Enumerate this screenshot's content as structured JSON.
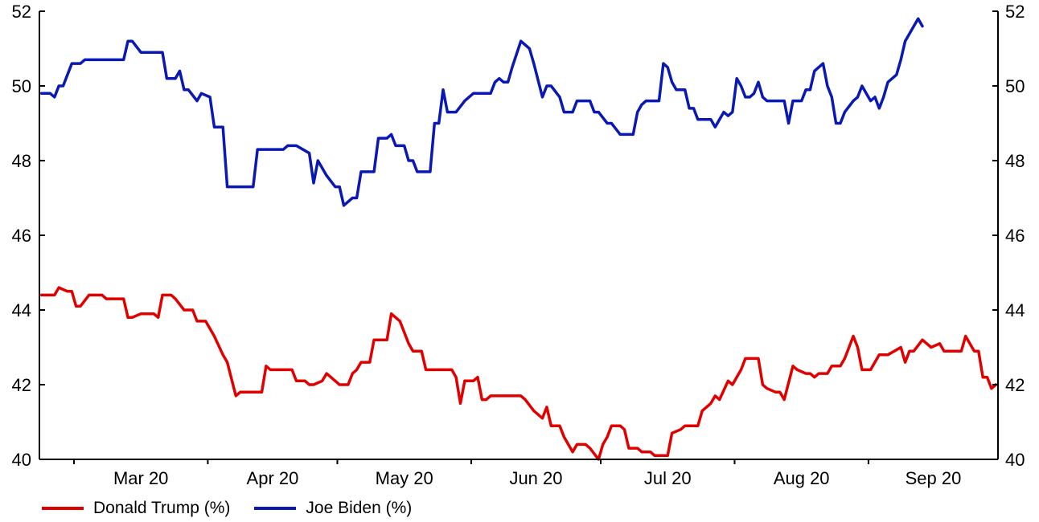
{
  "chart_data": {
    "type": "line",
    "title": "",
    "xlabel": "",
    "ylabel": "",
    "ylim": [
      40,
      52
    ],
    "y_ticks": [
      "40",
      "42",
      "44",
      "46",
      "48",
      "50",
      "52"
    ],
    "y_axis_sides": "left-and-right",
    "x_range": [
      "2020-02-22",
      "2020-09-30"
    ],
    "x_month_labels": [
      {
        "label": "Mar 20",
        "month": "2020-03"
      },
      {
        "label": "Apr 20",
        "month": "2020-04"
      },
      {
        "label": "May 20",
        "month": "2020-05"
      },
      {
        "label": "Jun 20",
        "month": "2020-06"
      },
      {
        "label": "Jul 20",
        "month": "2020-07"
      },
      {
        "label": "Aug 20",
        "month": "2020-08"
      },
      {
        "label": "Sep 20",
        "month": "2020-09"
      }
    ],
    "grid": false,
    "legend_position": "bottom-left",
    "series": [
      {
        "name": "Donald Trump (%)",
        "color": "#e00000",
        "points": [
          [
            "2020-02-22",
            44.4
          ],
          [
            "2020-02-25",
            44.4
          ],
          [
            "2020-02-26",
            44.6
          ],
          [
            "2020-02-28",
            44.5
          ],
          [
            "2020-02-29",
            44.5
          ],
          [
            "2020-03-01",
            44.1
          ],
          [
            "2020-03-02",
            44.1
          ],
          [
            "2020-03-04",
            44.4
          ],
          [
            "2020-03-07",
            44.4
          ],
          [
            "2020-03-08",
            44.3
          ],
          [
            "2020-03-12",
            44.3
          ],
          [
            "2020-03-13",
            43.8
          ],
          [
            "2020-03-14",
            43.8
          ],
          [
            "2020-03-16",
            43.9
          ],
          [
            "2020-03-19",
            43.9
          ],
          [
            "2020-03-20",
            43.8
          ],
          [
            "2020-03-21",
            44.4
          ],
          [
            "2020-03-23",
            44.4
          ],
          [
            "2020-03-24",
            44.3
          ],
          [
            "2020-03-26",
            44.0
          ],
          [
            "2020-03-28",
            44.0
          ],
          [
            "2020-03-29",
            43.7
          ],
          [
            "2020-03-31",
            43.7
          ],
          [
            "2020-04-02",
            43.3
          ],
          [
            "2020-04-04",
            42.8
          ],
          [
            "2020-04-05",
            42.6
          ],
          [
            "2020-04-07",
            41.7
          ],
          [
            "2020-04-08",
            41.8
          ],
          [
            "2020-04-13",
            41.8
          ],
          [
            "2020-04-14",
            42.5
          ],
          [
            "2020-04-15",
            42.4
          ],
          [
            "2020-04-20",
            42.4
          ],
          [
            "2020-04-21",
            42.1
          ],
          [
            "2020-04-23",
            42.1
          ],
          [
            "2020-04-24",
            42.0
          ],
          [
            "2020-04-25",
            42.0
          ],
          [
            "2020-04-27",
            42.1
          ],
          [
            "2020-04-28",
            42.3
          ],
          [
            "2020-04-30",
            42.1
          ],
          [
            "2020-05-01",
            42.0
          ],
          [
            "2020-05-03",
            42.0
          ],
          [
            "2020-05-04",
            42.3
          ],
          [
            "2020-05-05",
            42.4
          ],
          [
            "2020-05-06",
            42.6
          ],
          [
            "2020-05-07",
            42.6
          ],
          [
            "2020-05-08",
            42.6
          ],
          [
            "2020-05-09",
            43.2
          ],
          [
            "2020-05-12",
            43.2
          ],
          [
            "2020-05-13",
            43.9
          ],
          [
            "2020-05-15",
            43.7
          ],
          [
            "2020-05-17",
            43.1
          ],
          [
            "2020-05-18",
            42.9
          ],
          [
            "2020-05-20",
            42.9
          ],
          [
            "2020-05-21",
            42.4
          ],
          [
            "2020-05-27",
            42.4
          ],
          [
            "2020-05-28",
            42.2
          ],
          [
            "2020-05-29",
            41.5
          ],
          [
            "2020-05-30",
            42.1
          ],
          [
            "2020-06-01",
            42.1
          ],
          [
            "2020-06-02",
            42.2
          ],
          [
            "2020-06-03",
            41.6
          ],
          [
            "2020-06-04",
            41.6
          ],
          [
            "2020-06-05",
            41.7
          ],
          [
            "2020-06-12",
            41.7
          ],
          [
            "2020-06-13",
            41.6
          ],
          [
            "2020-06-15",
            41.3
          ],
          [
            "2020-06-17",
            41.1
          ],
          [
            "2020-06-18",
            41.4
          ],
          [
            "2020-06-19",
            40.9
          ],
          [
            "2020-06-21",
            40.9
          ],
          [
            "2020-06-22",
            40.6
          ],
          [
            "2020-06-24",
            40.2
          ],
          [
            "2020-06-25",
            40.4
          ],
          [
            "2020-06-27",
            40.4
          ],
          [
            "2020-06-28",
            40.3
          ],
          [
            "2020-06-30",
            40.0
          ],
          [
            "2020-07-01",
            40.4
          ],
          [
            "2020-07-02",
            40.6
          ],
          [
            "2020-07-03",
            40.9
          ],
          [
            "2020-07-04",
            40.9
          ],
          [
            "2020-07-05",
            40.9
          ],
          [
            "2020-07-06",
            40.8
          ],
          [
            "2020-07-07",
            40.3
          ],
          [
            "2020-07-09",
            40.3
          ],
          [
            "2020-07-10",
            40.2
          ],
          [
            "2020-07-12",
            40.2
          ],
          [
            "2020-07-13",
            40.1
          ],
          [
            "2020-07-16",
            40.1
          ],
          [
            "2020-07-17",
            40.7
          ],
          [
            "2020-07-19",
            40.8
          ],
          [
            "2020-07-20",
            40.9
          ],
          [
            "2020-07-23",
            40.9
          ],
          [
            "2020-07-24",
            41.3
          ],
          [
            "2020-07-26",
            41.5
          ],
          [
            "2020-07-27",
            41.7
          ],
          [
            "2020-07-28",
            41.6
          ],
          [
            "2020-07-30",
            42.1
          ],
          [
            "2020-07-31",
            42.0
          ],
          [
            "2020-08-02",
            42.4
          ],
          [
            "2020-08-03",
            42.7
          ],
          [
            "2020-08-06",
            42.7
          ],
          [
            "2020-08-07",
            42.0
          ],
          [
            "2020-08-08",
            41.9
          ],
          [
            "2020-08-10",
            41.8
          ],
          [
            "2020-08-11",
            41.8
          ],
          [
            "2020-08-12",
            41.6
          ],
          [
            "2020-08-14",
            42.5
          ],
          [
            "2020-08-15",
            42.4
          ],
          [
            "2020-08-17",
            42.3
          ],
          [
            "2020-08-18",
            42.3
          ],
          [
            "2020-08-19",
            42.2
          ],
          [
            "2020-08-20",
            42.3
          ],
          [
            "2020-08-22",
            42.3
          ],
          [
            "2020-08-23",
            42.5
          ],
          [
            "2020-08-25",
            42.5
          ],
          [
            "2020-08-26",
            42.7
          ],
          [
            "2020-08-28",
            43.3
          ],
          [
            "2020-08-29",
            43.0
          ],
          [
            "2020-08-30",
            42.4
          ],
          [
            "2020-09-01",
            42.4
          ],
          [
            "2020-09-03",
            42.8
          ],
          [
            "2020-09-05",
            42.8
          ],
          [
            "2020-09-08",
            43.0
          ],
          [
            "2020-09-09",
            42.6
          ],
          [
            "2020-09-10",
            42.9
          ],
          [
            "2020-09-11",
            42.9
          ],
          [
            "2020-09-13",
            43.2
          ],
          [
            "2020-09-15",
            43.0
          ],
          [
            "2020-09-17",
            43.1
          ],
          [
            "2020-09-18",
            42.9
          ],
          [
            "2020-09-22",
            42.9
          ],
          [
            "2020-09-23",
            43.3
          ],
          [
            "2020-09-25",
            42.9
          ],
          [
            "2020-09-26",
            42.9
          ],
          [
            "2020-09-27",
            42.2
          ],
          [
            "2020-09-28",
            42.2
          ],
          [
            "2020-09-29",
            41.9
          ],
          [
            "2020-09-30",
            42.0
          ]
        ]
      },
      {
        "name": "Joe Biden (%)",
        "color": "#0a18b4",
        "points": [
          [
            "2020-02-22",
            49.8
          ],
          [
            "2020-02-24",
            49.8
          ],
          [
            "2020-02-25",
            49.7
          ],
          [
            "2020-02-26",
            50.0
          ],
          [
            "2020-02-27",
            50.0
          ],
          [
            "2020-02-29",
            50.6
          ],
          [
            "2020-03-02",
            50.6
          ],
          [
            "2020-03-03",
            50.7
          ],
          [
            "2020-03-12",
            50.7
          ],
          [
            "2020-03-13",
            51.2
          ],
          [
            "2020-03-14",
            51.2
          ],
          [
            "2020-03-16",
            50.9
          ],
          [
            "2020-03-21",
            50.9
          ],
          [
            "2020-03-22",
            50.2
          ],
          [
            "2020-03-24",
            50.2
          ],
          [
            "2020-03-25",
            50.4
          ],
          [
            "2020-03-26",
            49.9
          ],
          [
            "2020-03-27",
            49.9
          ],
          [
            "2020-03-29",
            49.6
          ],
          [
            "2020-03-30",
            49.8
          ],
          [
            "2020-04-01",
            49.7
          ],
          [
            "2020-04-02",
            48.9
          ],
          [
            "2020-04-04",
            48.9
          ],
          [
            "2020-04-05",
            47.3
          ],
          [
            "2020-04-11",
            47.3
          ],
          [
            "2020-04-12",
            48.3
          ],
          [
            "2020-04-18",
            48.3
          ],
          [
            "2020-04-19",
            48.4
          ],
          [
            "2020-04-21",
            48.4
          ],
          [
            "2020-04-24",
            48.2
          ],
          [
            "2020-04-25",
            47.4
          ],
          [
            "2020-04-26",
            48.0
          ],
          [
            "2020-04-28",
            47.6
          ],
          [
            "2020-04-30",
            47.3
          ],
          [
            "2020-05-01",
            47.3
          ],
          [
            "2020-05-02",
            46.8
          ],
          [
            "2020-05-04",
            47.0
          ],
          [
            "2020-05-05",
            47.0
          ],
          [
            "2020-05-06",
            47.7
          ],
          [
            "2020-05-09",
            47.7
          ],
          [
            "2020-05-10",
            48.6
          ],
          [
            "2020-05-12",
            48.6
          ],
          [
            "2020-05-13",
            48.7
          ],
          [
            "2020-05-14",
            48.4
          ],
          [
            "2020-05-16",
            48.4
          ],
          [
            "2020-05-17",
            48.0
          ],
          [
            "2020-05-18",
            48.0
          ],
          [
            "2020-05-19",
            47.7
          ],
          [
            "2020-05-22",
            47.7
          ],
          [
            "2020-05-23",
            49.0
          ],
          [
            "2020-05-24",
            49.0
          ],
          [
            "2020-05-25",
            49.9
          ],
          [
            "2020-05-26",
            49.3
          ],
          [
            "2020-05-28",
            49.3
          ],
          [
            "2020-05-30",
            49.6
          ],
          [
            "2020-06-01",
            49.8
          ],
          [
            "2020-06-05",
            49.8
          ],
          [
            "2020-06-06",
            50.1
          ],
          [
            "2020-06-07",
            50.2
          ],
          [
            "2020-06-08",
            50.1
          ],
          [
            "2020-06-09",
            50.1
          ],
          [
            "2020-06-10",
            50.5
          ],
          [
            "2020-06-12",
            51.2
          ],
          [
            "2020-06-14",
            51.0
          ],
          [
            "2020-06-15",
            50.6
          ],
          [
            "2020-06-17",
            49.7
          ],
          [
            "2020-06-18",
            50.0
          ],
          [
            "2020-06-19",
            50.0
          ],
          [
            "2020-06-21",
            49.7
          ],
          [
            "2020-06-22",
            49.3
          ],
          [
            "2020-06-24",
            49.3
          ],
          [
            "2020-06-25",
            49.6
          ],
          [
            "2020-06-28",
            49.6
          ],
          [
            "2020-06-29",
            49.3
          ],
          [
            "2020-06-30",
            49.3
          ],
          [
            "2020-07-02",
            49.0
          ],
          [
            "2020-07-03",
            49.0
          ],
          [
            "2020-07-05",
            48.7
          ],
          [
            "2020-07-08",
            48.7
          ],
          [
            "2020-07-09",
            49.3
          ],
          [
            "2020-07-10",
            49.5
          ],
          [
            "2020-07-11",
            49.6
          ],
          [
            "2020-07-14",
            49.6
          ],
          [
            "2020-07-15",
            50.6
          ],
          [
            "2020-07-16",
            50.5
          ],
          [
            "2020-07-17",
            50.1
          ],
          [
            "2020-07-18",
            49.9
          ],
          [
            "2020-07-20",
            49.9
          ],
          [
            "2020-07-21",
            49.4
          ],
          [
            "2020-07-22",
            49.4
          ],
          [
            "2020-07-23",
            49.1
          ],
          [
            "2020-07-26",
            49.1
          ],
          [
            "2020-07-27",
            48.9
          ],
          [
            "2020-07-28",
            49.1
          ],
          [
            "2020-07-29",
            49.3
          ],
          [
            "2020-07-30",
            49.2
          ],
          [
            "2020-07-31",
            49.3
          ],
          [
            "2020-08-01",
            50.2
          ],
          [
            "2020-08-02",
            50.0
          ],
          [
            "2020-08-03",
            49.7
          ],
          [
            "2020-08-04",
            49.7
          ],
          [
            "2020-08-05",
            49.8
          ],
          [
            "2020-08-06",
            50.1
          ],
          [
            "2020-08-07",
            49.7
          ],
          [
            "2020-08-08",
            49.6
          ],
          [
            "2020-08-12",
            49.6
          ],
          [
            "2020-08-13",
            49.0
          ],
          [
            "2020-08-14",
            49.6
          ],
          [
            "2020-08-16",
            49.6
          ],
          [
            "2020-08-17",
            49.9
          ],
          [
            "2020-08-18",
            49.9
          ],
          [
            "2020-08-19",
            50.4
          ],
          [
            "2020-08-21",
            50.6
          ],
          [
            "2020-08-22",
            50.0
          ],
          [
            "2020-08-23",
            49.7
          ],
          [
            "2020-08-24",
            49.0
          ],
          [
            "2020-08-25",
            49.0
          ],
          [
            "2020-08-26",
            49.3
          ],
          [
            "2020-08-28",
            49.6
          ],
          [
            "2020-08-29",
            49.7
          ],
          [
            "2020-08-30",
            50.0
          ],
          [
            "2020-08-31",
            49.8
          ],
          [
            "2020-09-01",
            49.6
          ],
          [
            "2020-09-02",
            49.7
          ],
          [
            "2020-09-03",
            49.4
          ],
          [
            "2020-09-04",
            49.7
          ],
          [
            "2020-09-05",
            50.1
          ],
          [
            "2020-09-07",
            50.3
          ],
          [
            "2020-09-08",
            50.7
          ],
          [
            "2020-09-09",
            51.2
          ],
          [
            "2020-09-11",
            51.6
          ],
          [
            "2020-09-12",
            51.8
          ],
          [
            "2020-09-13",
            51.6
          ]
        ]
      }
    ]
  }
}
